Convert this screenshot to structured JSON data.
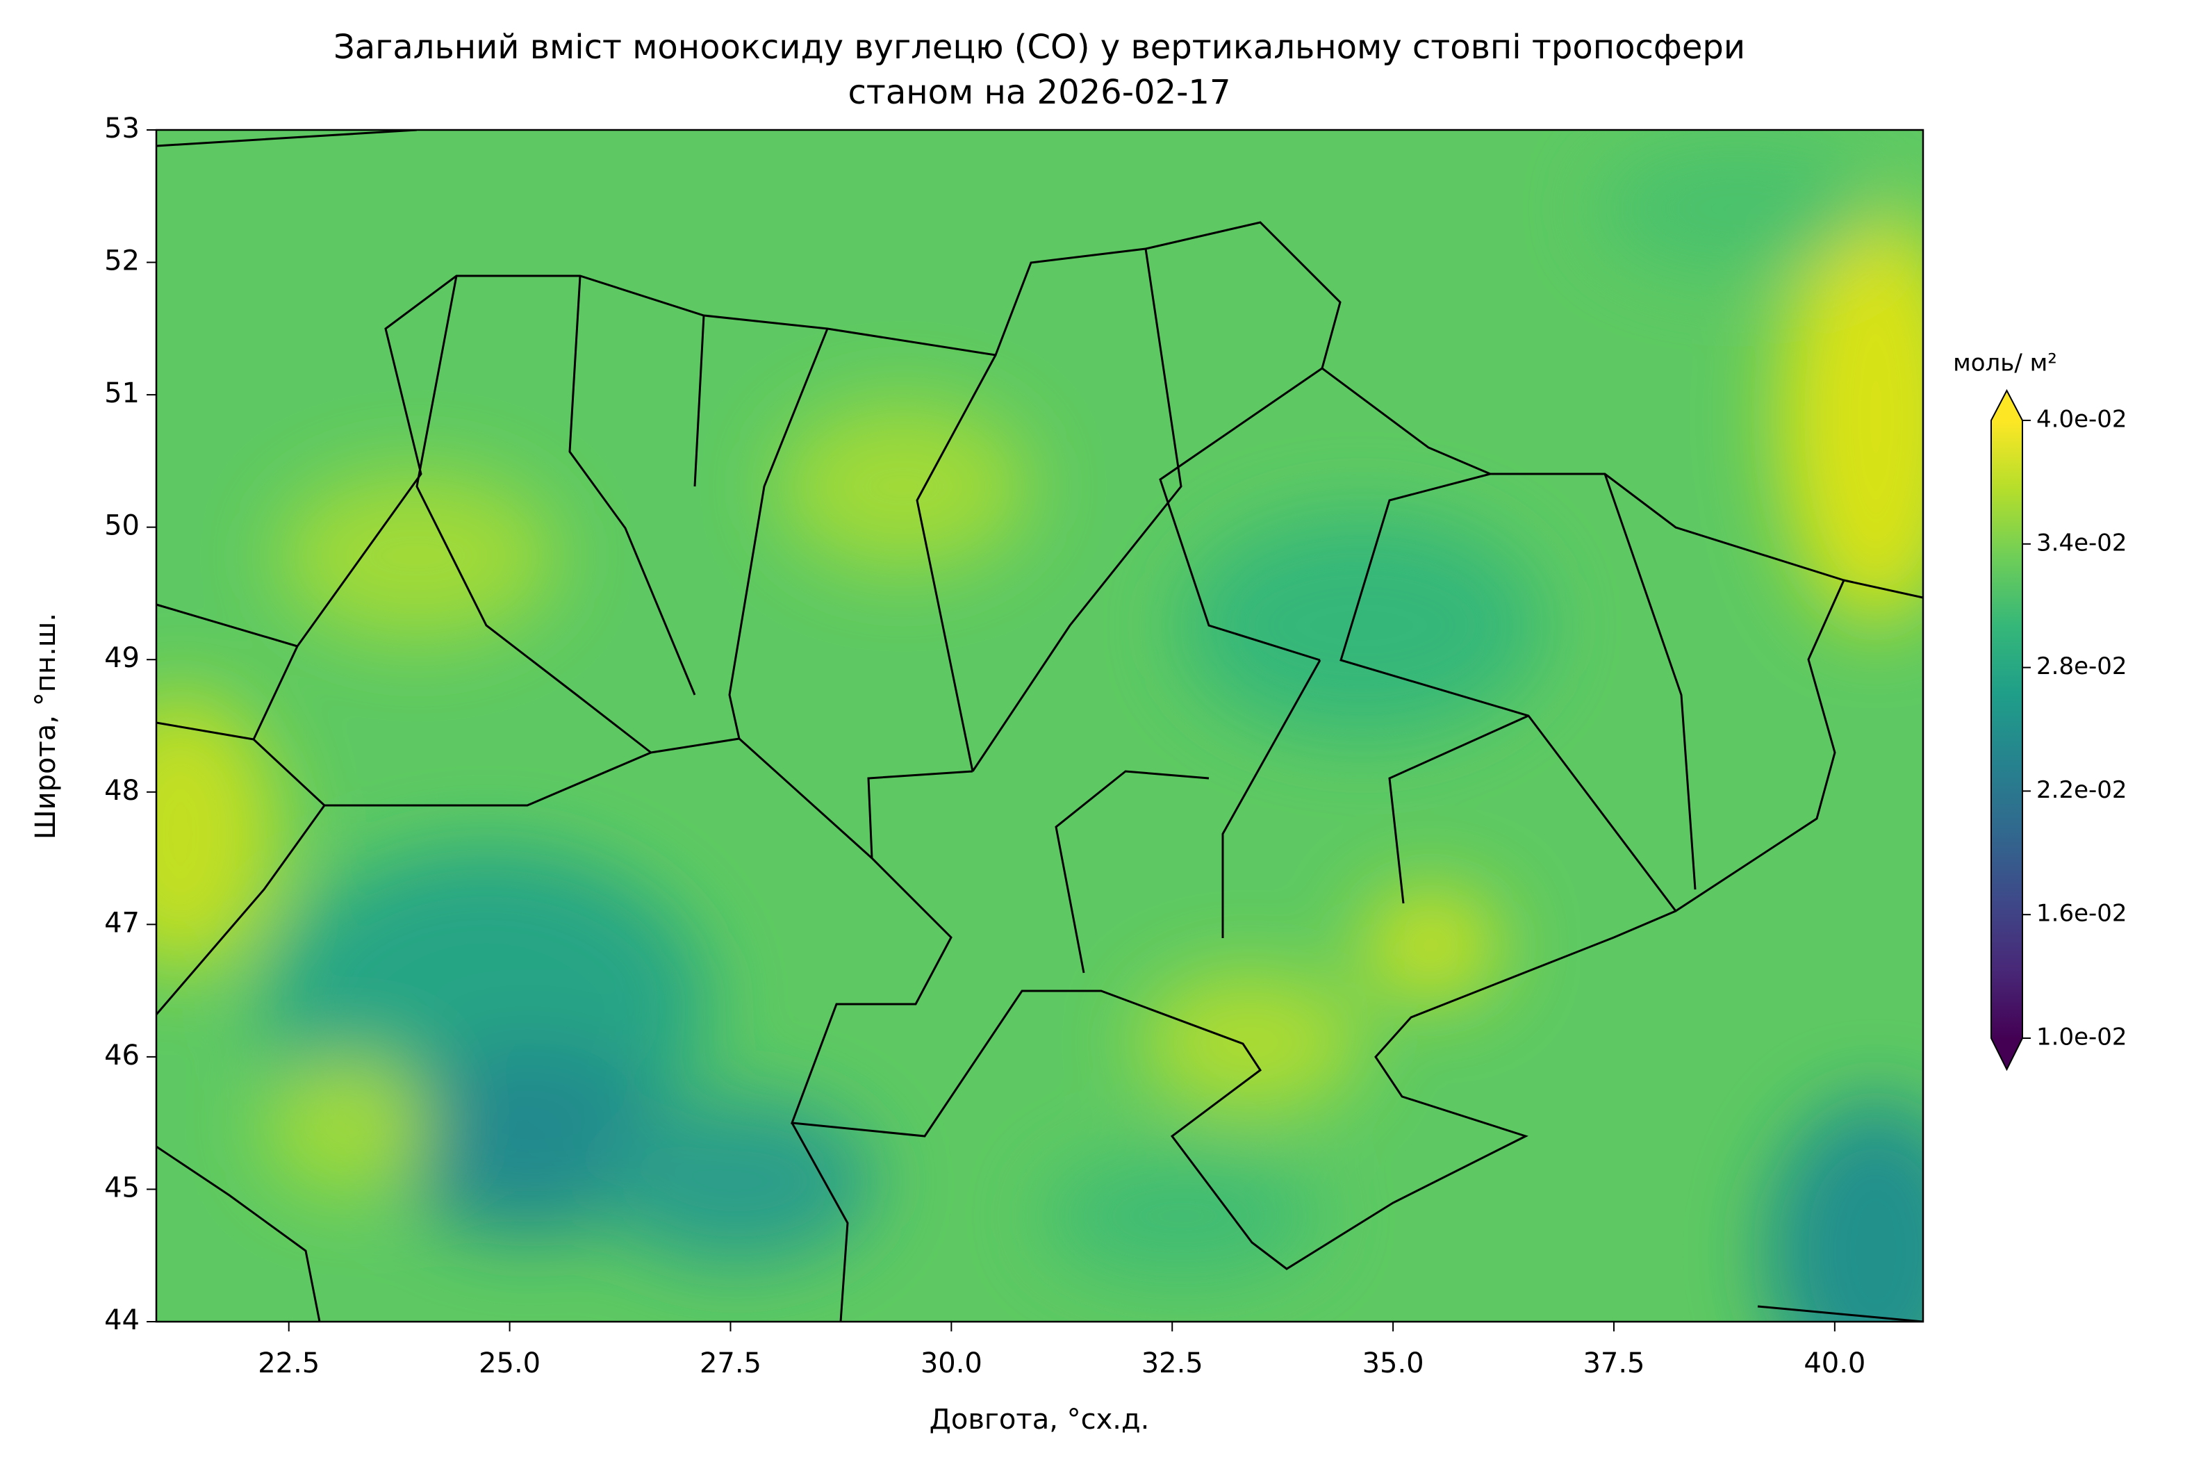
{
  "chart_data": {
    "type": "contour-map",
    "title": "Загальний вміст монооксиду вуглецю (CO) у вертикальному стовпі тропосфери",
    "subtitle": "станом на 2026-02-17",
    "x_label": "Довгота, °сх.д.",
    "y_label": "Широта, °пн.ш.",
    "xlim": [
      21,
      41
    ],
    "ylim": [
      44,
      53
    ],
    "xticks": [
      22.5,
      {
        "value": 25,
        "label": "25.0"
      },
      27.5,
      {
        "value": 30,
        "label": "30.0"
      },
      32.5,
      {
        "value": 35,
        "label": "35.0"
      },
      37.5,
      {
        "value": 40,
        "label": "40.0"
      }
    ],
    "yticks": [
      44,
      45,
      46,
      47,
      48,
      49,
      50,
      51,
      52,
      53
    ],
    "colormap": "viridis",
    "colorbar": {
      "label": "моль/ м²",
      "clim": [
        0.01,
        0.04
      ],
      "ticks": [
        {
          "value": 0.01,
          "label": "1.0e-02"
        },
        {
          "value": 0.016,
          "label": "1.6e-02"
        },
        {
          "value": 0.022,
          "label": "2.2e-02"
        },
        {
          "value": 0.028,
          "label": "2.8e-02"
        },
        {
          "value": 0.034,
          "label": "3.4e-02"
        },
        {
          "value": 0.04,
          "label": "4.0e-02"
        }
      ]
    }
  }
}
